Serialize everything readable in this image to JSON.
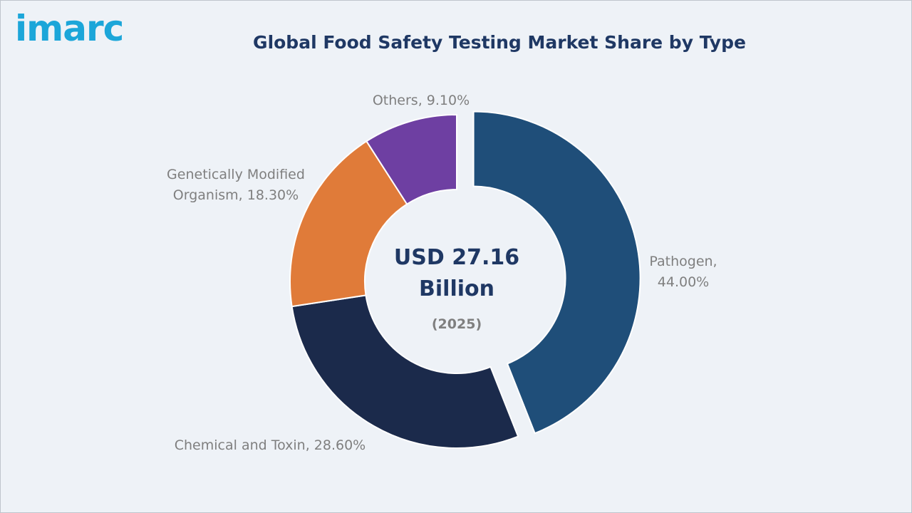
{
  "brand": {
    "logo_text": "imarc",
    "logo_color": "#1ca6d9"
  },
  "chart_data": {
    "type": "pie",
    "title": "Global Food Safety Testing Market Share by Type",
    "center_value": "USD 27.16 Billion",
    "center_value_line1": "USD 27.16",
    "center_value_line2": "Billion",
    "center_year": "(2025)",
    "exploded_slice": "Pathogen",
    "slices": [
      {
        "name": "Pathogen",
        "value": 44.0,
        "label_lines": [
          "Pathogen,",
          "44.00%"
        ],
        "color": "#1f4e79"
      },
      {
        "name": "Chemical and Toxin",
        "value": 28.6,
        "label_lines": [
          "Chemical and Toxin, 28.60%"
        ],
        "color": "#1b2a4b"
      },
      {
        "name": "Genetically Modified Organism",
        "value": 18.3,
        "label_lines": [
          "Genetically Modified",
          "Organism, 18.30%"
        ],
        "color": "#e07b39"
      },
      {
        "name": "Others",
        "value": 9.1,
        "label_lines": [
          "Others, 9.10%"
        ],
        "color": "#6e3fa2"
      }
    ]
  }
}
